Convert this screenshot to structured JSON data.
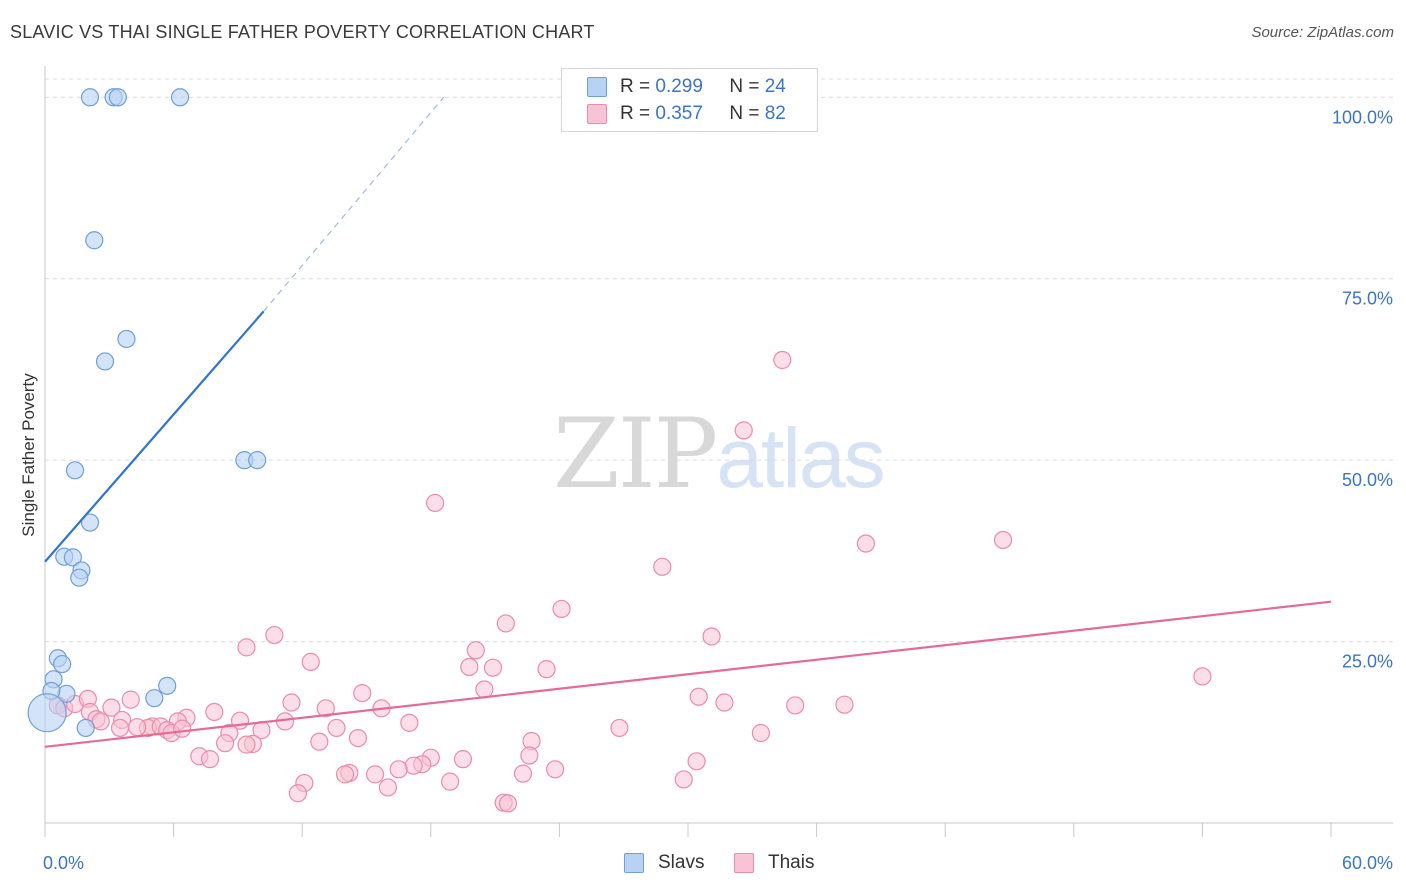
{
  "title": "SLAVIC VS THAI SINGLE FATHER POVERTY CORRELATION CHART",
  "source": "Source: ZipAtlas.com",
  "watermark": {
    "zip": "ZIP",
    "atlas": "atlas"
  },
  "legend_top": {
    "rows": [
      {
        "r_label": "R =",
        "r_value": "0.299",
        "n_label": "N =",
        "n_value": "24"
      },
      {
        "r_label": "R =",
        "r_value": "0.357",
        "n_label": "N =",
        "n_value": "82"
      }
    ]
  },
  "legend_bottom": {
    "items": [
      "Slavs",
      "Thais"
    ]
  },
  "colors": {
    "slavs_fill": "#b8d2f3",
    "slavs_stroke": "#6e9fd8",
    "slavs_line": "#2f74d0",
    "thais_fill": "#f8c3d4",
    "thais_stroke": "#ec8bab",
    "thais_line": "#e46b98",
    "axis_label": "#3a75c4",
    "grid": "#dcdcdc"
  },
  "chart_data": {
    "type": "scatter",
    "title": "SLAVIC VS THAI SINGLE FATHER POVERTY CORRELATION CHART",
    "xlabel": "",
    "ylabel": "Single Father Poverty",
    "xlim": [
      0,
      60
    ],
    "ylim": [
      0,
      105
    ],
    "x_tick_labels": [
      "0.0%",
      "60.0%"
    ],
    "y_ticks": [
      25,
      50,
      75,
      100
    ],
    "y_tick_labels": [
      "25.0%",
      "50.0%",
      "75.0%",
      "100.0%"
    ],
    "grid": true,
    "series": [
      {
        "name": "Slavs",
        "r": 0.299,
        "n": 24,
        "trend": {
          "x0": 0,
          "y0": 36,
          "x1": 10.2,
          "y1": 70.5,
          "dash_x1": 18.6,
          "dash_y1": 100
        },
        "points": [
          {
            "x": 2.1,
            "y": 100
          },
          {
            "x": 3.2,
            "y": 100
          },
          {
            "x": 3.4,
            "y": 100
          },
          {
            "x": 6.3,
            "y": 100
          },
          {
            "x": 2.3,
            "y": 80.3
          },
          {
            "x": 3.8,
            "y": 66.7
          },
          {
            "x": 2.8,
            "y": 63.6
          },
          {
            "x": 9.3,
            "y": 50
          },
          {
            "x": 9.9,
            "y": 50
          },
          {
            "x": 1.4,
            "y": 48.6
          },
          {
            "x": 2.1,
            "y": 41.4
          },
          {
            "x": 0.9,
            "y": 36.7
          },
          {
            "x": 1.3,
            "y": 36.6
          },
          {
            "x": 1.7,
            "y": 34.8
          },
          {
            "x": 1.6,
            "y": 33.8
          },
          {
            "x": 0.6,
            "y": 22.7
          },
          {
            "x": 0.8,
            "y": 21.9
          },
          {
            "x": 0.4,
            "y": 19.8
          },
          {
            "x": 5.7,
            "y": 18.9
          },
          {
            "x": 1.0,
            "y": 17.8
          },
          {
            "x": 5.1,
            "y": 17.2
          },
          {
            "x": 0.3,
            "y": 18.2
          },
          {
            "x": 1.9,
            "y": 13.1
          },
          {
            "x": 0.1,
            "y": 15.2,
            "big": true
          }
        ]
      },
      {
        "name": "Thais",
        "r": 0.357,
        "n": 82,
        "trend": {
          "x0": 0,
          "y0": 10.5,
          "x1": 60,
          "y1": 30.5
        },
        "points": [
          {
            "x": 34.4,
            "y": 63.8
          },
          {
            "x": 32.6,
            "y": 54.1
          },
          {
            "x": 18.2,
            "y": 44.1
          },
          {
            "x": 38.3,
            "y": 38.5
          },
          {
            "x": 44.7,
            "y": 39
          },
          {
            "x": 28.8,
            "y": 35.3
          },
          {
            "x": 24.1,
            "y": 29.5
          },
          {
            "x": 21.5,
            "y": 27.5
          },
          {
            "x": 31.1,
            "y": 25.7
          },
          {
            "x": 10.7,
            "y": 25.9
          },
          {
            "x": 9.4,
            "y": 24.2
          },
          {
            "x": 20.1,
            "y": 23.8
          },
          {
            "x": 12.4,
            "y": 22.2
          },
          {
            "x": 19.8,
            "y": 21.5
          },
          {
            "x": 20.9,
            "y": 21.4
          },
          {
            "x": 23.4,
            "y": 21.2
          },
          {
            "x": 54.0,
            "y": 20.2
          },
          {
            "x": 20.5,
            "y": 18.4
          },
          {
            "x": 14.8,
            "y": 17.9
          },
          {
            "x": 30.5,
            "y": 17.4
          },
          {
            "x": 31.7,
            "y": 16.6
          },
          {
            "x": 35.0,
            "y": 16.2
          },
          {
            "x": 37.3,
            "y": 16.3
          },
          {
            "x": 11.5,
            "y": 16.6
          },
          {
            "x": 13.1,
            "y": 15.8
          },
          {
            "x": 15.7,
            "y": 15.8
          },
          {
            "x": 0.6,
            "y": 16.2
          },
          {
            "x": 0.9,
            "y": 15.8
          },
          {
            "x": 1.4,
            "y": 16.4
          },
          {
            "x": 2.0,
            "y": 17.1
          },
          {
            "x": 2.1,
            "y": 15.3
          },
          {
            "x": 3.1,
            "y": 15.9
          },
          {
            "x": 4.0,
            "y": 17.0
          },
          {
            "x": 7.9,
            "y": 15.3
          },
          {
            "x": 6.6,
            "y": 14.5
          },
          {
            "x": 9.1,
            "y": 14.1
          },
          {
            "x": 11.2,
            "y": 14.0
          },
          {
            "x": 6.2,
            "y": 14.0
          },
          {
            "x": 2.4,
            "y": 14.3
          },
          {
            "x": 3.6,
            "y": 14.2
          },
          {
            "x": 5.0,
            "y": 13.3
          },
          {
            "x": 3.5,
            "y": 13.1
          },
          {
            "x": 4.8,
            "y": 13.1
          },
          {
            "x": 5.4,
            "y": 13.3
          },
          {
            "x": 5.7,
            "y": 12.8
          },
          {
            "x": 13.6,
            "y": 13.1
          },
          {
            "x": 17.0,
            "y": 13.8
          },
          {
            "x": 10.1,
            "y": 12.8
          },
          {
            "x": 8.6,
            "y": 12.4
          },
          {
            "x": 5.9,
            "y": 12.4
          },
          {
            "x": 26.8,
            "y": 13.1
          },
          {
            "x": 33.4,
            "y": 12.4
          },
          {
            "x": 14.6,
            "y": 11.7
          },
          {
            "x": 12.8,
            "y": 11.2
          },
          {
            "x": 22.7,
            "y": 11.3
          },
          {
            "x": 8.4,
            "y": 11.0
          },
          {
            "x": 9.7,
            "y": 10.9
          },
          {
            "x": 9.4,
            "y": 10.8
          },
          {
            "x": 7.2,
            "y": 9.2
          },
          {
            "x": 7.7,
            "y": 8.8
          },
          {
            "x": 18.0,
            "y": 9.0
          },
          {
            "x": 19.5,
            "y": 8.8
          },
          {
            "x": 22.6,
            "y": 9.3
          },
          {
            "x": 30.4,
            "y": 8.5
          },
          {
            "x": 17.6,
            "y": 8.1
          },
          {
            "x": 17.2,
            "y": 7.9
          },
          {
            "x": 16.5,
            "y": 7.4
          },
          {
            "x": 23.8,
            "y": 7.4
          },
          {
            "x": 14.2,
            "y": 6.9
          },
          {
            "x": 14.0,
            "y": 6.7
          },
          {
            "x": 15.4,
            "y": 6.7
          },
          {
            "x": 22.3,
            "y": 6.8
          },
          {
            "x": 18.9,
            "y": 5.7
          },
          {
            "x": 12.1,
            "y": 5.5
          },
          {
            "x": 29.8,
            "y": 6.0
          },
          {
            "x": 16.0,
            "y": 4.9
          },
          {
            "x": 11.8,
            "y": 4.1
          },
          {
            "x": 21.4,
            "y": 2.8
          },
          {
            "x": 21.6,
            "y": 2.7
          },
          {
            "x": 4.3,
            "y": 13.2
          },
          {
            "x": 2.6,
            "y": 14.0
          },
          {
            "x": 6.4,
            "y": 13.0
          }
        ]
      }
    ]
  }
}
